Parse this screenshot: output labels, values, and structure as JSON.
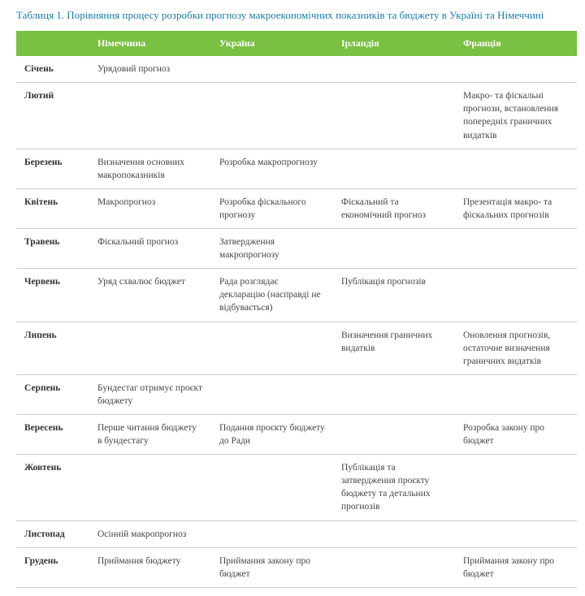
{
  "title": "Таблиця 1. Порівняння процесу розробки прогнозу макроекономічних показників та бюджету в Україні та Німеччині",
  "columns": [
    "",
    "Німеччина",
    "Україна",
    "Ірландія",
    "Франція"
  ],
  "rows": [
    {
      "month": "Січень",
      "c1": "Урядовий прогноз",
      "c2": "",
      "c3": "",
      "c4": ""
    },
    {
      "month": "Лютий",
      "c1": "",
      "c2": "",
      "c3": "",
      "c4": "Макро- та фіскальні прогнози, встановлення попередніх граничних видатків"
    },
    {
      "month": "Березень",
      "c1": "Визначення основних макропоказників",
      "c2": "Розробка макропрогнозу",
      "c3": "",
      "c4": ""
    },
    {
      "month": "Квітень",
      "c1": "Макропрогноз",
      "c2": "Розробка фіскального прогнозу",
      "c3": "Фіскальний та економічний прогноз",
      "c4": "Презентація макро- та фіскальних прогнозів"
    },
    {
      "month": "Травень",
      "c1": "Фіскальний прогноз",
      "c2": "Затвердження макропрогнозу",
      "c3": "",
      "c4": ""
    },
    {
      "month": "Червень",
      "c1": "Уряд схвалює бюджет",
      "c2": "Рада розглядає декларацію (насправді не відбувається)",
      "c3": "Публікація прогнозів",
      "c4": ""
    },
    {
      "month": "Липень",
      "c1": "",
      "c2": "",
      "c3": "Визначення граничних видатків",
      "c4": "Оновлення прогнозів, остаточне визначення граничних видатків"
    },
    {
      "month": "Серпень",
      "c1": "Бундестаг отримує проєкт бюджету",
      "c2": "",
      "c3": "",
      "c4": ""
    },
    {
      "month": "Вересень",
      "c1": "Перше читання бюджету в бундестагу",
      "c2": "Подання проєкту бюджету до Ради",
      "c3": "",
      "c4": "Розробка закону про бюджет"
    },
    {
      "month": "Жовтень",
      "c1": "",
      "c2": "",
      "c3": "Публікація та затвердження проєкту бюджету та детальних прогнозів",
      "c4": ""
    },
    {
      "month": "Листопад",
      "c1": "Осінній макропрогноз",
      "c2": "",
      "c3": "",
      "c4": ""
    },
    {
      "month": "Грудень",
      "c1": "Приймання бюджету",
      "c2": "Приймання закону про бюджет",
      "c3": "",
      "c4": "Приймання закону про бюджет"
    }
  ],
  "style": {
    "title_color": "#1a7ba8",
    "header_bg": "#7ac043",
    "header_text": "#ffffff",
    "border_color": "#cccccc",
    "body_text": "#444444",
    "month_text": "#333333",
    "background": "#ffffff"
  }
}
